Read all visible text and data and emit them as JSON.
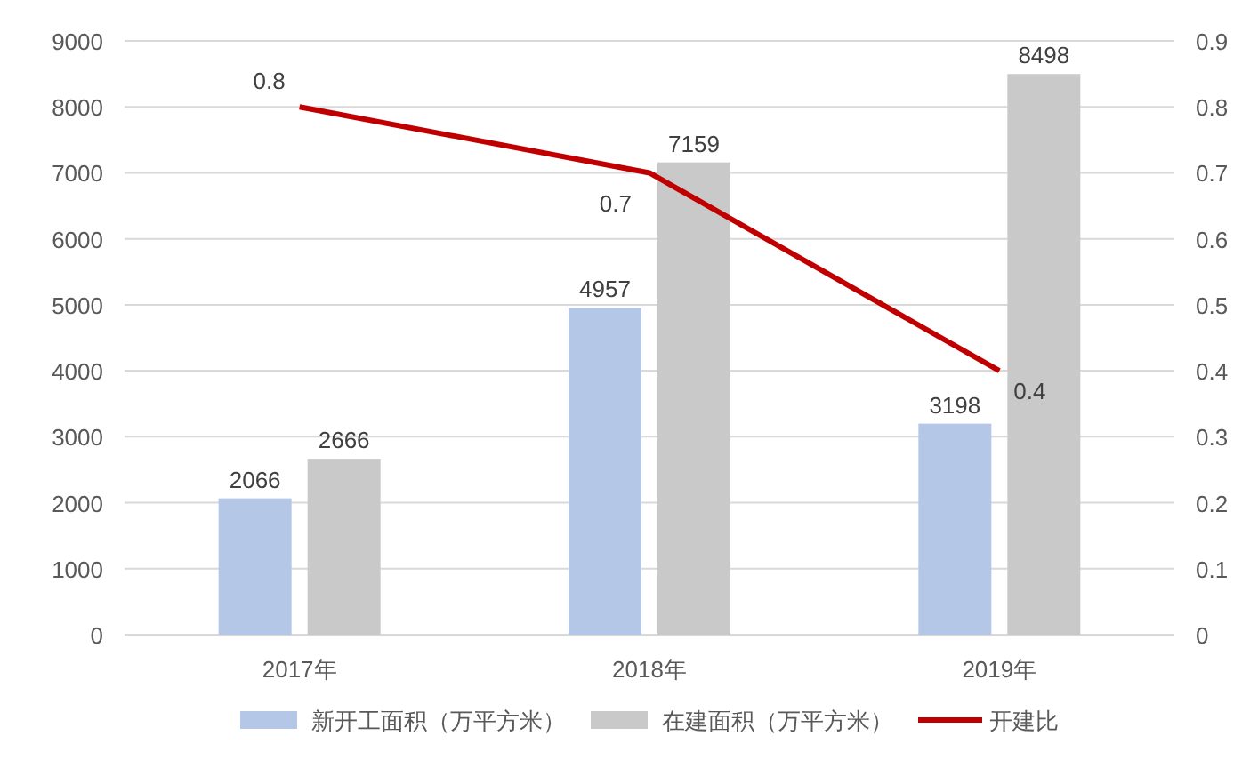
{
  "chart_data": {
    "type": "bar",
    "categories": [
      "2017年",
      "2018年",
      "2019年"
    ],
    "series": [
      {
        "name": "新开工面积（万平方米）",
        "color": "#b4c7e7",
        "values": [
          2066,
          4957,
          3198
        ]
      },
      {
        "name": "在建面积（万平方米）",
        "color": "#c9c9c9",
        "values": [
          2666,
          7159,
          8498
        ]
      },
      {
        "name": "开建比",
        "type": "line",
        "axis": "y2",
        "color": "#c00000",
        "values": [
          0.8,
          0.7,
          0.4
        ]
      }
    ],
    "ylim": [
      0,
      9000
    ],
    "yticks": [
      0,
      1000,
      2000,
      3000,
      4000,
      5000,
      6000,
      7000,
      8000,
      9000
    ],
    "y2lim": [
      0,
      0.9
    ],
    "y2ticks": [
      0,
      0.1,
      0.2,
      0.3,
      0.4,
      0.5,
      0.6,
      0.7,
      0.8,
      0.9
    ],
    "grid": "y",
    "legend": "bottom",
    "data_labels": true
  }
}
